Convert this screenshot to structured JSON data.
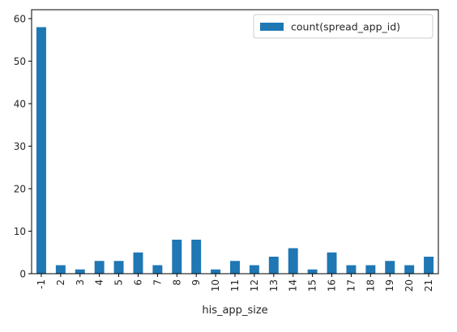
{
  "chart_data": {
    "type": "bar",
    "title": "",
    "xlabel": "his_app_size",
    "ylabel": "",
    "categories": [
      "-1",
      "2",
      "3",
      "4",
      "5",
      "6",
      "7",
      "8",
      "9",
      "10",
      "11",
      "12",
      "13",
      "14",
      "15",
      "16",
      "17",
      "18",
      "19",
      "20",
      "21"
    ],
    "series": [
      {
        "name": "count(spread_app_id)",
        "values": [
          58,
          2,
          1,
          3,
          3,
          5,
          2,
          8,
          8,
          1,
          3,
          2,
          4,
          6,
          1,
          5,
          2,
          2,
          3,
          2,
          4
        ],
        "color": "#1f77b4"
      }
    ],
    "ylim": [
      0,
      60
    ],
    "yticks": [
      0,
      10,
      20,
      30,
      40,
      50,
      60
    ],
    "grid": false,
    "legend_position": "top-right"
  }
}
